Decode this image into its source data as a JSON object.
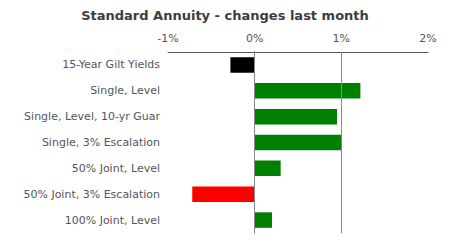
{
  "chart_data": {
    "type": "bar",
    "orientation": "horizontal",
    "title": "Standard Annuity - changes last month",
    "categories": [
      "15-Year Gilt Yields",
      "Single, Level",
      "Single, Level, 10-yr Guar",
      "Single, 3% Escalation",
      "50% Joint, Level",
      "50% Joint, 3% Escalation",
      "100% Joint, Level"
    ],
    "values": [
      -0.28,
      1.22,
      0.95,
      1.0,
      0.3,
      -0.72,
      0.2
    ],
    "colors": [
      "#000000",
      "#008000",
      "#008000",
      "#008000",
      "#008000",
      "#ff0000",
      "#008000"
    ],
    "xlim": [
      -1.0,
      2.0
    ],
    "xticks": [
      {
        "value": -1.0,
        "label": "-1%"
      },
      {
        "value": 0.0,
        "label": "0%"
      },
      {
        "value": 1.0,
        "label": "1%"
      },
      {
        "value": 2.0,
        "label": "2%"
      }
    ],
    "reference_lines": [
      0.0,
      1.0
    ],
    "grid": false
  }
}
